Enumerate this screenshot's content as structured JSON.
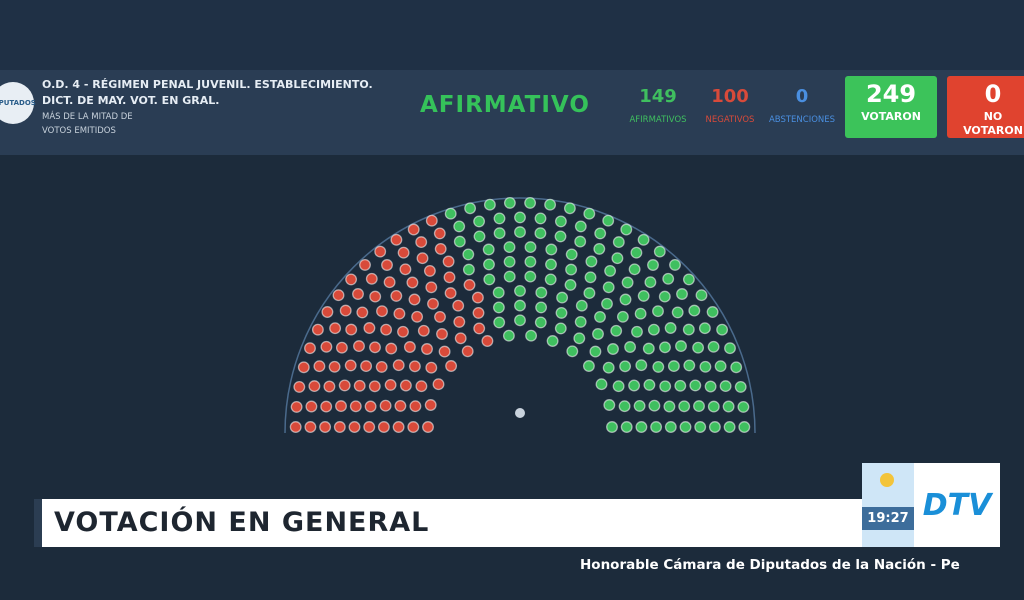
{
  "header": {
    "logo": "DIPUTADOS",
    "title": "O.D. 4 - RÉGIMEN PENAL JUVENIL. ESTABLECIMIENTO. DICT. DE MAY. VOT. EN GRAL.",
    "majority": "MÁS DE LA MITAD DE VOTOS EMITIDOS",
    "result": "AFIRMATIVO"
  },
  "tally": [
    {
      "value": 149,
      "label": "AFIRMATIVOS",
      "color": "#3fbf5f"
    },
    {
      "value": 100,
      "label": "NEGATIVOS",
      "color": "#d84a3a"
    },
    {
      "value": 0,
      "label": "ABSTENCIONES",
      "color": "#4a8fe0"
    }
  ],
  "totals": [
    {
      "value": 249,
      "label": "VOTARON",
      "color": "#3cc35a"
    },
    {
      "value": 0,
      "label": "NO VOTARON",
      "color": "#e0432f"
    }
  ],
  "lower_third": {
    "headline": "VOTACIÓN EN GENERAL",
    "ticker": "Honorable Cámara de Diputados de la Nación - Pe",
    "time": "19:27",
    "channel": "DTV"
  }
}
